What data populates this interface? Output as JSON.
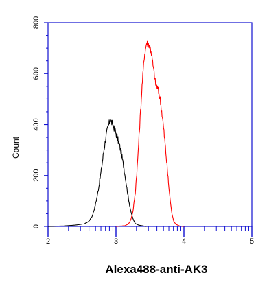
{
  "chart_data": {
    "type": "line",
    "title": "",
    "xlabel": "Alexa488-anti-AK3",
    "ylabel": "Count",
    "x_scale": "log",
    "xlim": [
      100,
      100000
    ],
    "ylim": [
      0,
      800
    ],
    "x_tick_labels": [
      {
        "value": 100,
        "label": "2"
      },
      {
        "value": 1000,
        "label": "3"
      },
      {
        "value": 10000,
        "label": "4"
      },
      {
        "value": 100000,
        "label": "5"
      }
    ],
    "y_ticks": [
      0,
      200,
      400,
      600,
      800
    ],
    "grid": false,
    "legend": "none",
    "series": [
      {
        "color": "#000000",
        "points": [
          [
            0,
            0
          ],
          [
            0.7,
            2
          ],
          [
            1.2,
            5
          ],
          [
            1.6,
            10
          ],
          [
            1.8,
            20
          ],
          [
            1.95,
            40
          ],
          [
            2.05,
            70
          ],
          [
            2.15,
            110
          ],
          [
            2.25,
            160
          ],
          [
            2.35,
            220
          ],
          [
            2.45,
            290
          ],
          [
            2.55,
            350
          ],
          [
            2.65,
            390
          ],
          [
            2.75,
            420
          ],
          [
            2.85,
            400
          ],
          [
            2.95,
            380
          ],
          [
            3.05,
            350
          ],
          [
            3.15,
            320
          ],
          [
            3.25,
            280
          ],
          [
            3.35,
            230
          ],
          [
            3.45,
            170
          ],
          [
            3.55,
            110
          ],
          [
            3.65,
            60
          ],
          [
            3.75,
            30
          ],
          [
            3.85,
            12
          ],
          [
            4.0,
            5
          ],
          [
            4.2,
            2
          ],
          [
            4.35,
            0
          ]
        ]
      },
      {
        "color": "#ff0000",
        "points": [
          [
            3.0,
            0
          ],
          [
            3.4,
            3
          ],
          [
            3.55,
            10
          ],
          [
            3.65,
            25
          ],
          [
            3.75,
            60
          ],
          [
            3.85,
            130
          ],
          [
            3.95,
            250
          ],
          [
            4.05,
            400
          ],
          [
            4.15,
            550
          ],
          [
            4.25,
            670
          ],
          [
            4.35,
            720
          ],
          [
            4.45,
            715
          ],
          [
            4.55,
            690
          ],
          [
            4.65,
            620
          ],
          [
            4.75,
            560
          ],
          [
            4.85,
            540
          ],
          [
            4.95,
            500
          ],
          [
            5.05,
            430
          ],
          [
            5.15,
            340
          ],
          [
            5.25,
            240
          ],
          [
            5.35,
            140
          ],
          [
            5.45,
            60
          ],
          [
            5.55,
            20
          ],
          [
            5.65,
            8
          ],
          [
            5.8,
            2
          ],
          [
            6.0,
            0
          ]
        ]
      }
    ]
  }
}
